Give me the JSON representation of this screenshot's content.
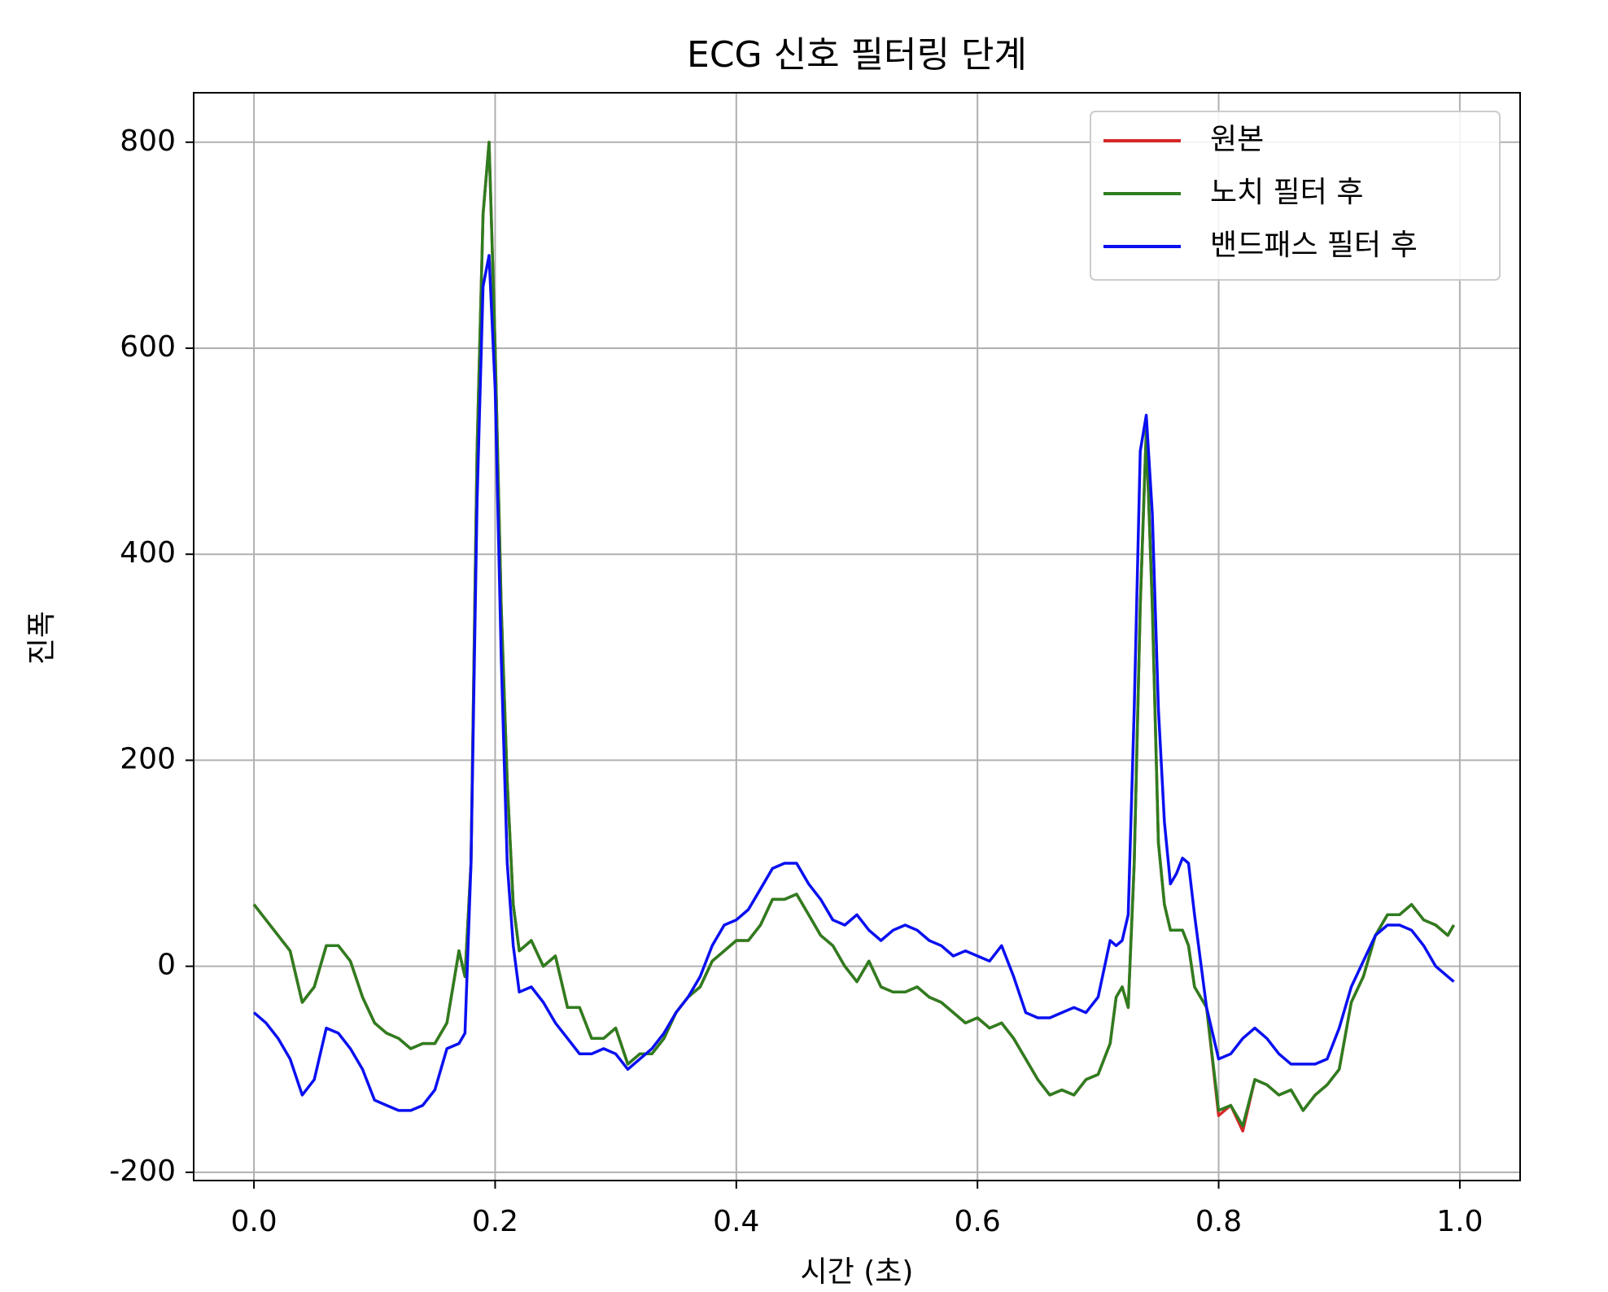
{
  "chart_data": {
    "type": "line",
    "title": "ECG 신호 필터링 단계",
    "xlabel": "시간 (초)",
    "ylabel": "진폭",
    "xlim": [
      -0.05,
      1.05
    ],
    "ylim": [
      -208,
      848
    ],
    "xticks": [
      {
        "value": 0,
        "label": "0.0"
      },
      {
        "value": 0.2,
        "label": "0.2"
      },
      {
        "value": 0.4,
        "label": "0.4"
      },
      {
        "value": 0.6,
        "label": "0.6"
      },
      {
        "value": 0.8,
        "label": "0.8"
      },
      {
        "value": 1,
        "label": "1.0"
      }
    ],
    "yticks": [
      -200,
      0,
      200,
      400,
      600,
      800
    ],
    "grid": true,
    "legend": "upper right",
    "x": [
      0,
      0.01,
      0.02,
      0.03,
      0.04,
      0.05,
      0.06,
      0.07,
      0.08,
      0.09,
      0.1,
      0.11,
      0.12,
      0.13,
      0.14,
      0.15,
      0.16,
      0.17,
      0.175,
      0.18,
      0.185,
      0.19,
      0.195,
      0.2,
      0.205,
      0.21,
      0.215,
      0.22,
      0.23,
      0.24,
      0.25,
      0.26,
      0.27,
      0.28,
      0.29,
      0.3,
      0.31,
      0.32,
      0.33,
      0.34,
      0.35,
      0.36,
      0.37,
      0.38,
      0.39,
      0.4,
      0.41,
      0.42,
      0.43,
      0.44,
      0.45,
      0.46,
      0.47,
      0.48,
      0.49,
      0.5,
      0.51,
      0.52,
      0.53,
      0.54,
      0.55,
      0.56,
      0.57,
      0.58,
      0.59,
      0.6,
      0.61,
      0.62,
      0.63,
      0.64,
      0.65,
      0.66,
      0.67,
      0.68,
      0.69,
      0.7,
      0.71,
      0.715,
      0.72,
      0.725,
      0.73,
      0.735,
      0.74,
      0.745,
      0.75,
      0.755,
      0.76,
      0.765,
      0.77,
      0.775,
      0.78,
      0.79,
      0.8,
      0.81,
      0.82,
      0.83,
      0.84,
      0.85,
      0.86,
      0.87,
      0.88,
      0.89,
      0.9,
      0.91,
      0.92,
      0.93,
      0.94,
      0.95,
      0.96,
      0.97,
      0.98,
      0.99,
      0.995
    ],
    "series": [
      {
        "name": "원본",
        "color": "#d62728",
        "values": [
          60,
          45,
          30,
          15,
          -35,
          -20,
          20,
          20,
          5,
          -30,
          -55,
          -65,
          -70,
          -80,
          -75,
          -75,
          -55,
          15,
          -10,
          100,
          500,
          730,
          800,
          600,
          350,
          180,
          60,
          15,
          25,
          0,
          10,
          -40,
          -40,
          -70,
          -70,
          -60,
          -95,
          -85,
          -85,
          -70,
          -45,
          -30,
          -20,
          5,
          15,
          25,
          25,
          40,
          65,
          65,
          70,
          50,
          30,
          20,
          0,
          -15,
          5,
          -20,
          -25,
          -25,
          -20,
          -30,
          -35,
          -45,
          -55,
          -50,
          -60,
          -55,
          -70,
          -90,
          -110,
          -125,
          -120,
          -125,
          -110,
          -105,
          -75,
          -30,
          -20,
          -40,
          100,
          350,
          520,
          350,
          120,
          60,
          35,
          35,
          35,
          20,
          -20,
          -40,
          -145,
          -135,
          -160,
          -110,
          -115,
          -125,
          -120,
          -140,
          -125,
          -115,
          -100,
          -35,
          -10,
          30,
          50,
          50,
          60,
          45,
          40,
          30,
          40
        ]
      },
      {
        "name": "노치 필터 후",
        "color": "#2e7d1f",
        "values": [
          60,
          45,
          30,
          15,
          -35,
          -20,
          20,
          20,
          5,
          -30,
          -55,
          -65,
          -70,
          -80,
          -75,
          -75,
          -55,
          15,
          -10,
          100,
          500,
          730,
          800,
          600,
          350,
          180,
          60,
          15,
          25,
          0,
          10,
          -40,
          -40,
          -70,
          -70,
          -60,
          -95,
          -85,
          -85,
          -70,
          -45,
          -30,
          -20,
          5,
          15,
          25,
          25,
          40,
          65,
          65,
          70,
          50,
          30,
          20,
          0,
          -15,
          5,
          -20,
          -25,
          -25,
          -20,
          -30,
          -35,
          -45,
          -55,
          -50,
          -60,
          -55,
          -70,
          -90,
          -110,
          -125,
          -120,
          -125,
          -110,
          -105,
          -75,
          -30,
          -20,
          -40,
          100,
          350,
          520,
          350,
          120,
          60,
          35,
          35,
          35,
          20,
          -20,
          -40,
          -140,
          -135,
          -155,
          -110,
          -115,
          -125,
          -120,
          -140,
          -125,
          -115,
          -100,
          -35,
          -10,
          30,
          50,
          50,
          60,
          45,
          40,
          30,
          40
        ]
      },
      {
        "name": "밴드패스 필터 후",
        "color": "#0a10f0",
        "values": [
          -45,
          -55,
          -70,
          -90,
          -125,
          -110,
          -60,
          -65,
          -80,
          -100,
          -130,
          -135,
          -140,
          -140,
          -135,
          -120,
          -80,
          -75,
          -65,
          100,
          450,
          660,
          690,
          560,
          300,
          100,
          20,
          -25,
          -20,
          -35,
          -55,
          -70,
          -85,
          -85,
          -80,
          -85,
          -100,
          -90,
          -80,
          -65,
          -45,
          -30,
          -10,
          20,
          40,
          45,
          55,
          75,
          95,
          100,
          100,
          80,
          65,
          45,
          40,
          50,
          35,
          25,
          35,
          40,
          35,
          25,
          20,
          10,
          15,
          10,
          5,
          20,
          -10,
          -45,
          -50,
          -50,
          -45,
          -40,
          -45,
          -30,
          25,
          20,
          25,
          50,
          250,
          500,
          535,
          440,
          250,
          140,
          80,
          90,
          105,
          100,
          50,
          -40,
          -90,
          -85,
          -70,
          -60,
          -70,
          -85,
          -95,
          -95,
          -95,
          -90,
          -60,
          -20,
          5,
          30,
          40,
          40,
          35,
          20,
          0,
          -10,
          -15
        ]
      }
    ]
  }
}
